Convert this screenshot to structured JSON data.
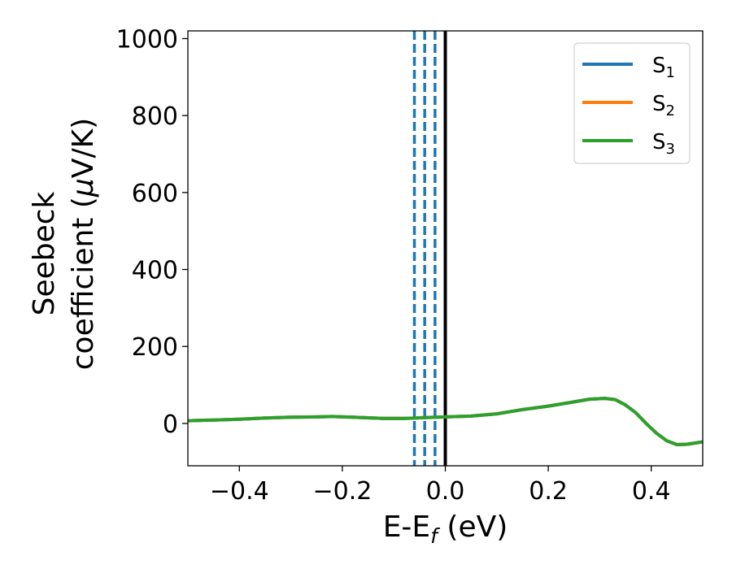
{
  "chart_data": {
    "type": "line",
    "xlabel": "E-E",
    "xlabel_sub": "f",
    "xlabel_tail": " (eV)",
    "ylabel_line1": "Seebeck",
    "ylabel_line2": "coefficient  (",
    "ylabel_mu": "μ",
    "ylabel_tail": "V/K)",
    "xlim": [
      -0.5,
      0.5
    ],
    "ylim": [
      -110,
      1020
    ],
    "xticks": [
      -0.4,
      -0.2,
      0.0,
      0.2,
      0.4
    ],
    "xtick_labels": [
      "−0.4",
      "−0.2",
      "0.0",
      "0.2",
      "0.4"
    ],
    "yticks": [
      0,
      200,
      400,
      600,
      800,
      1000
    ],
    "ytick_labels": [
      "0",
      "200",
      "400",
      "600",
      "800",
      "1000"
    ],
    "grid": false,
    "legend_position": "top-right",
    "series": [
      {
        "name": "S",
        "sub": "1",
        "color": "#1f77b4",
        "x": [
          -0.5,
          -0.45,
          -0.4,
          -0.35,
          -0.3,
          -0.25,
          -0.22,
          -0.18,
          -0.12,
          -0.08,
          -0.04,
          0.0,
          0.05,
          0.1,
          0.15,
          0.2,
          0.25,
          0.28,
          0.31,
          0.33,
          0.35,
          0.37,
          0.39,
          0.41,
          0.43,
          0.45,
          0.47,
          0.5
        ],
        "y": [
          7,
          9,
          11,
          14,
          16,
          17,
          18,
          16,
          13,
          13,
          15,
          17,
          19,
          25,
          36,
          45,
          56,
          63,
          65,
          62,
          48,
          28,
          0,
          -25,
          -45,
          -55,
          -54,
          -48
        ]
      },
      {
        "name": "S",
        "sub": "2",
        "color": "#ff7f0e",
        "x": [
          -0.5,
          -0.45,
          -0.4,
          -0.35,
          -0.3,
          -0.25,
          -0.22,
          -0.18,
          -0.12,
          -0.08,
          -0.04,
          0.0,
          0.05,
          0.1,
          0.15,
          0.2,
          0.25,
          0.28,
          0.31,
          0.33,
          0.35,
          0.37,
          0.39,
          0.41,
          0.43,
          0.45,
          0.47,
          0.5
        ],
        "y": [
          7,
          9,
          11,
          14,
          16,
          17,
          18,
          16,
          13,
          13,
          15,
          17,
          19,
          25,
          36,
          45,
          56,
          63,
          65,
          62,
          48,
          28,
          0,
          -25,
          -45,
          -55,
          -54,
          -48
        ]
      },
      {
        "name": "S",
        "sub": "3",
        "color": "#2ca02c",
        "x": [
          -0.5,
          -0.45,
          -0.4,
          -0.35,
          -0.3,
          -0.25,
          -0.22,
          -0.18,
          -0.12,
          -0.08,
          -0.04,
          0.0,
          0.05,
          0.1,
          0.15,
          0.2,
          0.25,
          0.28,
          0.31,
          0.33,
          0.35,
          0.37,
          0.39,
          0.41,
          0.43,
          0.45,
          0.47,
          0.5
        ],
        "y": [
          7,
          9,
          11,
          14,
          16,
          17,
          18,
          16,
          13,
          13,
          15,
          17,
          19,
          25,
          36,
          45,
          56,
          63,
          65,
          62,
          48,
          28,
          0,
          -25,
          -45,
          -55,
          -54,
          -48
        ]
      }
    ],
    "vertical_lines": [
      {
        "x": -0.06,
        "style": "dashed",
        "color": "#1f77b4"
      },
      {
        "x": -0.04,
        "style": "dashed",
        "color": "#1f77b4"
      },
      {
        "x": -0.02,
        "style": "dashed",
        "color": "#1f77b4"
      },
      {
        "x": 0.0,
        "style": "solid",
        "color": "#000000"
      }
    ]
  }
}
